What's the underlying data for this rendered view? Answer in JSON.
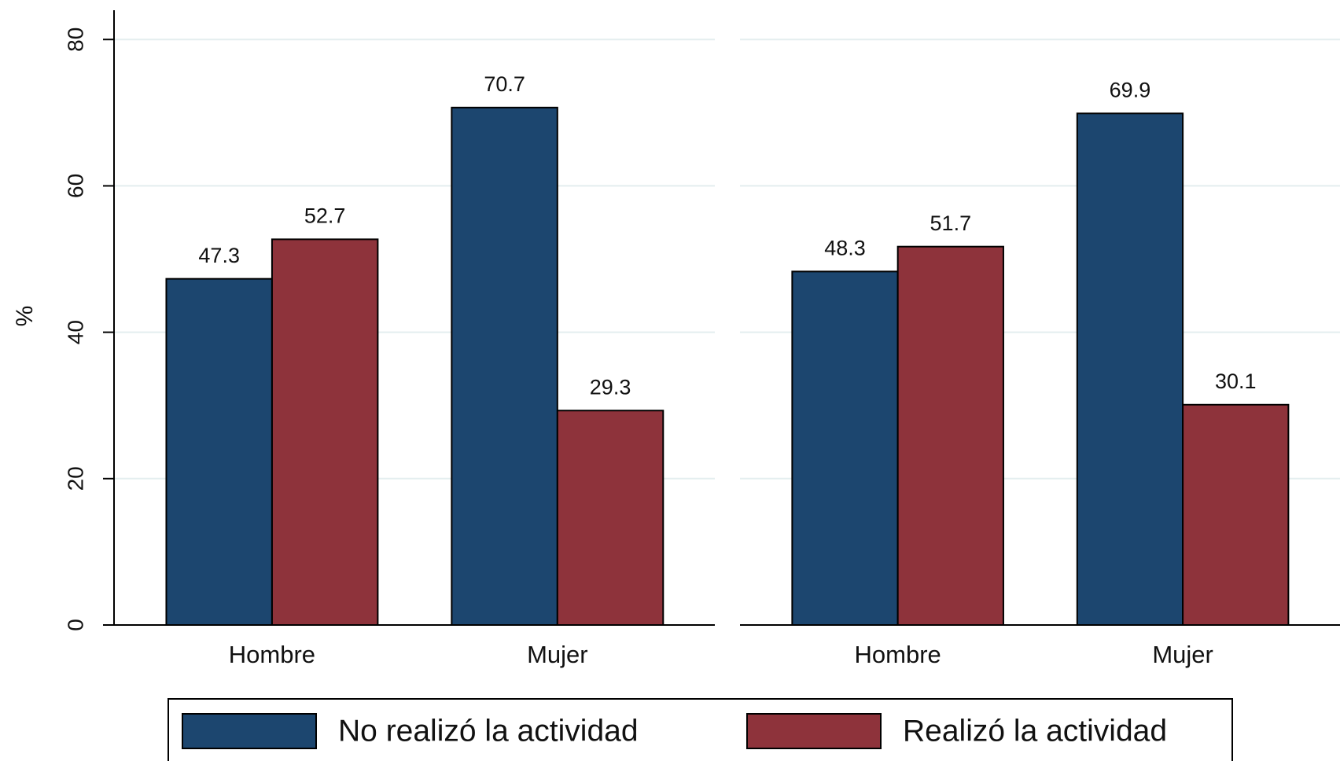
{
  "chart_data": [
    {
      "type": "bar",
      "ylabel": "%",
      "categories": [
        "Hombre",
        "Mujer"
      ],
      "series": [
        {
          "name": "No realizó la actividad",
          "color": "#1c466f",
          "values": [
            47.3,
            70.7
          ]
        },
        {
          "name": "Realizó la actividad",
          "color": "#8e333b",
          "values": [
            52.7,
            29.3
          ]
        }
      ],
      "ylim": [
        0,
        84
      ],
      "yticks": [
        0,
        20,
        40,
        60,
        80
      ],
      "grid": true
    },
    {
      "type": "bar",
      "categories": [
        "Hombre",
        "Mujer"
      ],
      "series": [
        {
          "color": "#1c466f",
          "values": [
            48.3,
            69.9
          ]
        },
        {
          "color": "#8e333b",
          "values": [
            51.7,
            30.1
          ]
        }
      ],
      "ylim": [
        0,
        84
      ],
      "yticks": [
        0,
        20,
        40,
        60,
        80
      ],
      "grid": true
    }
  ]
}
